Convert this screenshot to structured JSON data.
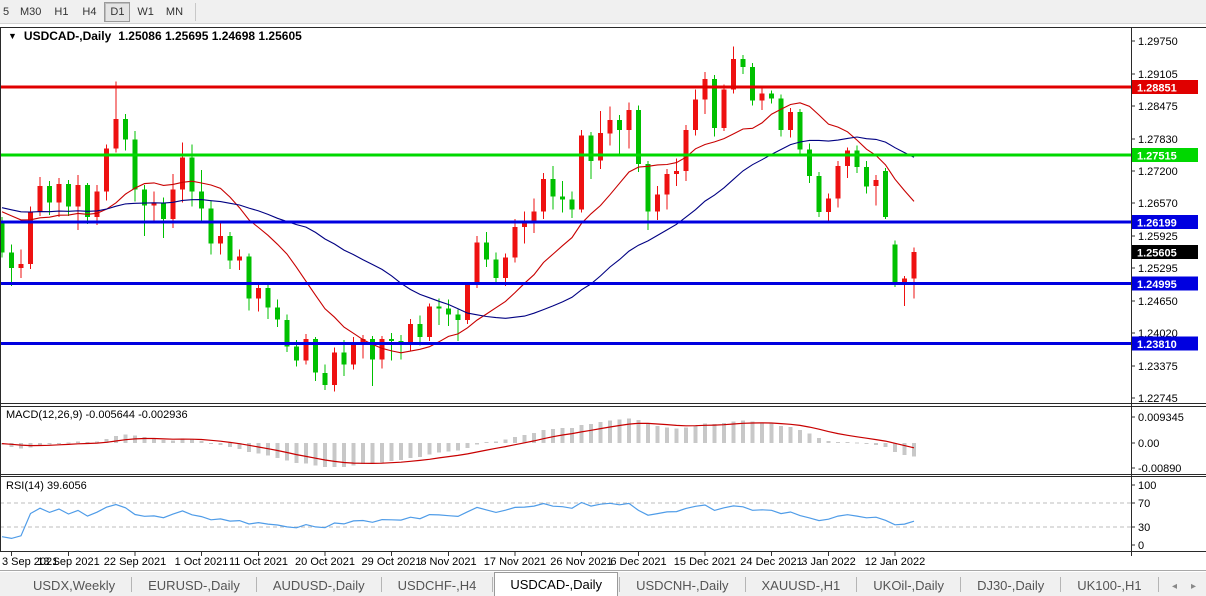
{
  "toolbar": {
    "timeframes": [
      "5",
      "M30",
      "H1",
      "H4",
      "D1",
      "W1",
      "MN"
    ],
    "active": "D1"
  },
  "chart": {
    "dropdown_icon": "▼",
    "symbol_text": "USDCAD-,Daily",
    "quote_text": "1.25086 1.25695 1.24698 1.25605"
  },
  "icons": {
    "tab_left": "◂",
    "tab_right": "▸"
  },
  "indicators": {
    "macd": {
      "name": "MACD(12,26,9)",
      "main": "-0.005644",
      "signal": "-0.002936",
      "axis_labels": [
        {
          "text": "0.009345",
          "value": 0.009345
        },
        {
          "text": "0.00",
          "value": 0
        },
        {
          "text": "-0.00890",
          "value": -0.0089
        }
      ]
    },
    "rsi": {
      "name": "RSI(14)",
      "value": "39.6056",
      "axis_labels": [
        {
          "text": "100",
          "value": 100
        },
        {
          "text": "70",
          "value": 70
        },
        {
          "text": "30",
          "value": 30
        },
        {
          "text": "0",
          "value": 0
        }
      ],
      "levels": [
        70,
        30
      ]
    }
  },
  "colors": {
    "bull": "#ee1111",
    "bear": "#00c000",
    "ma_fast": "#c80000",
    "ma_slow": "#000082",
    "macd_hist": "#c8c8c8",
    "macd_signal": "#c80000",
    "rsi_line": "#4f9ce8",
    "rsi_level": "#bcbcbc",
    "red": "#e00000",
    "green": "#00d800",
    "blue": "#0000e0",
    "current_bg": "#000000",
    "border": "#2a2a2a"
  },
  "chart_data": {
    "type": "candlestick",
    "symbol": "USDCAD-",
    "timeframe": "Daily",
    "current_quote": {
      "open": 1.25086,
      "high": 1.25695,
      "low": 1.24698,
      "close": 1.25605
    },
    "current_price_text": "1.25605",
    "y_ticks": [
      "1.29750",
      "1.29105",
      "1.28475",
      "1.27830",
      "1.27200",
      "1.26570",
      "1.25925",
      "1.25295",
      "1.24650",
      "1.24020",
      "1.23375",
      "1.22745"
    ],
    "hlines": [
      {
        "price_text": "1.28851",
        "price": 1.28851,
        "color_key": "red"
      },
      {
        "price_text": "1.27515",
        "price": 1.27515,
        "color_key": "green"
      },
      {
        "price_text": "1.26199",
        "price": 1.26199,
        "color_key": "blue"
      },
      {
        "price_text": "1.24995",
        "price": 1.24995,
        "color_key": "blue"
      },
      {
        "price_text": "1.23810",
        "price": 1.2381,
        "color_key": "blue"
      }
    ],
    "ma_fast_period": 13,
    "ma_slow_period": 30,
    "x_labels": [
      {
        "text": "3 Sep 2021",
        "idx": 1
      },
      {
        "text": "13 Sep 2021",
        "idx": 7
      },
      {
        "text": "22 Sep 2021",
        "idx": 14
      },
      {
        "text": "1 Oct 2021",
        "idx": 21
      },
      {
        "text": "11 Oct 2021",
        "idx": 27
      },
      {
        "text": "20 Oct 2021",
        "idx": 34
      },
      {
        "text": "29 Oct 2021",
        "idx": 41
      },
      {
        "text": "8 Nov 2021",
        "idx": 47
      },
      {
        "text": "17 Nov 2021",
        "idx": 54
      },
      {
        "text": "26 Nov 2021",
        "idx": 61
      },
      {
        "text": "6 Dec 2021",
        "idx": 67
      },
      {
        "text": "15 Dec 2021",
        "idx": 74
      },
      {
        "text": "24 Dec 2021",
        "idx": 81
      },
      {
        "text": "3 Jan 2022",
        "idx": 87
      },
      {
        "text": "12 Jan 2022",
        "idx": 94
      }
    ],
    "candles": [
      [
        1.2622,
        1.263,
        1.255,
        1.256
      ],
      [
        1.256,
        1.2576,
        1.2494,
        1.253
      ],
      [
        1.253,
        1.2566,
        1.251,
        1.2537
      ],
      [
        1.2537,
        1.265,
        1.2528,
        1.264
      ],
      [
        1.264,
        1.2708,
        1.2632,
        1.269
      ],
      [
        1.269,
        1.27,
        1.2634,
        1.2658
      ],
      [
        1.2658,
        1.2706,
        1.263,
        1.2694
      ],
      [
        1.2694,
        1.2702,
        1.2632,
        1.265
      ],
      [
        1.265,
        1.2712,
        1.2604,
        1.2692
      ],
      [
        1.2692,
        1.2696,
        1.2616,
        1.263
      ],
      [
        1.263,
        1.2692,
        1.2614,
        1.268
      ],
      [
        1.268,
        1.2772,
        1.2662,
        1.2764
      ],
      [
        1.2764,
        1.2896,
        1.2756,
        1.2822
      ],
      [
        1.2822,
        1.2832,
        1.276,
        1.2782
      ],
      [
        1.2782,
        1.2798,
        1.266,
        1.2684
      ],
      [
        1.2684,
        1.2692,
        1.2592,
        1.2652
      ],
      [
        1.2652,
        1.268,
        1.2618,
        1.2658
      ],
      [
        1.2658,
        1.2668,
        1.2588,
        1.2626
      ],
      [
        1.2626,
        1.2714,
        1.2608,
        1.2684
      ],
      [
        1.2684,
        1.2776,
        1.2658,
        1.2746
      ],
      [
        1.2746,
        1.2772,
        1.265,
        1.268
      ],
      [
        1.268,
        1.2722,
        1.2618,
        1.2646
      ],
      [
        1.2646,
        1.2662,
        1.2556,
        1.2578
      ],
      [
        1.2578,
        1.2622,
        1.2556,
        1.2592
      ],
      [
        1.2592,
        1.26,
        1.2528,
        1.2544
      ],
      [
        1.2544,
        1.2566,
        1.2526,
        1.2552
      ],
      [
        1.2552,
        1.2558,
        1.2446,
        1.247
      ],
      [
        1.247,
        1.2502,
        1.2444,
        1.249
      ],
      [
        1.249,
        1.2498,
        1.243,
        1.2452
      ],
      [
        1.2452,
        1.2468,
        1.2414,
        1.2428
      ],
      [
        1.2428,
        1.2438,
        1.2365,
        1.2376
      ],
      [
        1.2376,
        1.2388,
        1.2336,
        1.2348
      ],
      [
        1.2348,
        1.24,
        1.234,
        1.239
      ],
      [
        1.239,
        1.2394,
        1.2308,
        1.2324
      ],
      [
        1.2324,
        1.234,
        1.229,
        1.23
      ],
      [
        1.23,
        1.2374,
        1.2287,
        1.2364
      ],
      [
        1.2364,
        1.2388,
        1.2318,
        1.234
      ],
      [
        1.234,
        1.2394,
        1.233,
        1.2384
      ],
      [
        1.2384,
        1.2398,
        1.2352,
        1.239
      ],
      [
        1.239,
        1.2396,
        1.2298,
        1.235
      ],
      [
        1.235,
        1.2396,
        1.2332,
        1.239
      ],
      [
        1.239,
        1.2402,
        1.2348,
        1.2386
      ],
      [
        1.2386,
        1.2398,
        1.235,
        1.238
      ],
      [
        1.238,
        1.243,
        1.2368,
        1.242
      ],
      [
        1.242,
        1.2436,
        1.2378,
        1.2394
      ],
      [
        1.2394,
        1.246,
        1.2386,
        1.2454
      ],
      [
        1.2454,
        1.247,
        1.2418,
        1.245
      ],
      [
        1.245,
        1.2468,
        1.2416,
        1.2438
      ],
      [
        1.2438,
        1.2448,
        1.2386,
        1.2428
      ],
      [
        1.2428,
        1.2502,
        1.242,
        1.2496
      ],
      [
        1.2496,
        1.2592,
        1.249,
        1.258
      ],
      [
        1.258,
        1.26,
        1.2532,
        1.2546
      ],
      [
        1.2546,
        1.256,
        1.2498,
        1.251
      ],
      [
        1.251,
        1.2558,
        1.2494,
        1.255
      ],
      [
        1.255,
        1.2626,
        1.254,
        1.261
      ],
      [
        1.261,
        1.264,
        1.2578,
        1.2618
      ],
      [
        1.2618,
        1.2666,
        1.2598,
        1.264
      ],
      [
        1.264,
        1.2716,
        1.2626,
        1.2704
      ],
      [
        1.2704,
        1.273,
        1.2644,
        1.267
      ],
      [
        1.267,
        1.27,
        1.2638,
        1.2664
      ],
      [
        1.2664,
        1.268,
        1.2628,
        1.2644
      ],
      [
        1.2644,
        1.28,
        1.2638,
        1.279
      ],
      [
        1.279,
        1.2796,
        1.2704,
        1.274
      ],
      [
        1.274,
        1.2838,
        1.2724,
        1.2794
      ],
      [
        1.2794,
        1.2846,
        1.277,
        1.282
      ],
      [
        1.282,
        1.283,
        1.275,
        1.28
      ],
      [
        1.28,
        1.2854,
        1.2764,
        1.284
      ],
      [
        1.284,
        1.2848,
        1.2718,
        1.2734
      ],
      [
        1.2734,
        1.274,
        1.2604,
        1.264
      ],
      [
        1.264,
        1.269,
        1.2624,
        1.2674
      ],
      [
        1.2674,
        1.2724,
        1.2644,
        1.2714
      ],
      [
        1.2714,
        1.2744,
        1.269,
        1.272
      ],
      [
        1.272,
        1.281,
        1.27,
        1.28
      ],
      [
        1.28,
        1.288,
        1.279,
        1.286
      ],
      [
        1.286,
        1.2914,
        1.2832,
        1.29
      ],
      [
        1.29,
        1.2908,
        1.2788,
        1.2804
      ],
      [
        1.2804,
        1.289,
        1.2798,
        1.288
      ],
      [
        1.288,
        1.2964,
        1.2872,
        1.294
      ],
      [
        1.294,
        1.2948,
        1.291,
        1.2924
      ],
      [
        1.2924,
        1.2932,
        1.2848,
        1.2858
      ],
      [
        1.2858,
        1.2886,
        1.284,
        1.2872
      ],
      [
        1.2872,
        1.2878,
        1.2852,
        1.2862
      ],
      [
        1.2862,
        1.287,
        1.2788,
        1.28
      ],
      [
        1.28,
        1.2844,
        1.2786,
        1.2836
      ],
      [
        1.2836,
        1.2842,
        1.275,
        1.2762
      ],
      [
        1.2762,
        1.2774,
        1.2696,
        1.271
      ],
      [
        1.271,
        1.2718,
        1.263,
        1.264
      ],
      [
        1.264,
        1.2676,
        1.2622,
        1.2666
      ],
      [
        1.2666,
        1.274,
        1.2648,
        1.273
      ],
      [
        1.273,
        1.2766,
        1.2706,
        1.276
      ],
      [
        1.276,
        1.277,
        1.2716,
        1.2728
      ],
      [
        1.2728,
        1.274,
        1.2676,
        1.269
      ],
      [
        1.269,
        1.2712,
        1.2652,
        1.2702
      ],
      [
        1.272,
        1.2726,
        1.2626,
        1.263
      ],
      [
        1.2576,
        1.2584,
        1.2492,
        1.2496
      ],
      [
        1.2496,
        1.2514,
        1.2455,
        1.2509
      ],
      [
        1.25086,
        1.25695,
        1.24698,
        1.25605
      ]
    ]
  },
  "bottom_tabs": {
    "tabs": [
      "USDX,Weekly",
      "EURUSD-,Daily",
      "AUDUSD-,Daily",
      "USDCHF-,H4",
      "USDCAD-,Daily",
      "USDCNH-,Daily",
      "XAUUSD-,H1",
      "UKOil-,Daily",
      "DJ30-,Daily",
      "UK100-,H1"
    ],
    "active": "USDCAD-,Daily"
  }
}
